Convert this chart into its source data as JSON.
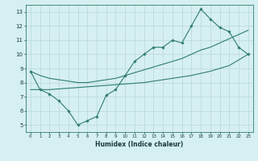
{
  "x": [
    0,
    1,
    2,
    3,
    4,
    5,
    6,
    7,
    8,
    9,
    10,
    11,
    12,
    13,
    14,
    15,
    16,
    17,
    18,
    19,
    20,
    21,
    22,
    23
  ],
  "y_main": [
    8.8,
    7.5,
    7.2,
    6.7,
    6.0,
    5.0,
    5.3,
    5.6,
    7.1,
    7.5,
    8.5,
    9.5,
    10.0,
    10.5,
    10.5,
    11.0,
    10.8,
    12.0,
    13.2,
    12.5,
    11.9,
    11.6,
    10.5,
    10.0
  ],
  "y_upper": [
    8.8,
    8.5,
    8.3,
    8.2,
    8.1,
    8.0,
    8.0,
    8.1,
    8.2,
    8.3,
    8.5,
    8.7,
    8.9,
    9.1,
    9.3,
    9.5,
    9.7,
    10.0,
    10.3,
    10.5,
    10.8,
    11.1,
    11.4,
    11.7
  ],
  "y_lower": [
    7.5,
    7.5,
    7.5,
    7.55,
    7.6,
    7.65,
    7.7,
    7.75,
    7.8,
    7.85,
    7.9,
    7.95,
    8.0,
    8.1,
    8.2,
    8.3,
    8.4,
    8.5,
    8.65,
    8.8,
    9.0,
    9.2,
    9.6,
    10.0
  ],
  "color": "#2e7d6e",
  "bg_color": "#d6eff0",
  "grid_color": "#b8d8da",
  "xlabel": "Humidex (Indice chaleur)",
  "xlim": [
    -0.5,
    23.5
  ],
  "ylim": [
    4.5,
    13.5
  ],
  "xticks": [
    0,
    1,
    2,
    3,
    4,
    5,
    6,
    7,
    8,
    9,
    10,
    11,
    12,
    13,
    14,
    15,
    16,
    17,
    18,
    19,
    20,
    21,
    22,
    23
  ],
  "yticks": [
    5,
    6,
    7,
    8,
    9,
    10,
    11,
    12,
    13
  ]
}
